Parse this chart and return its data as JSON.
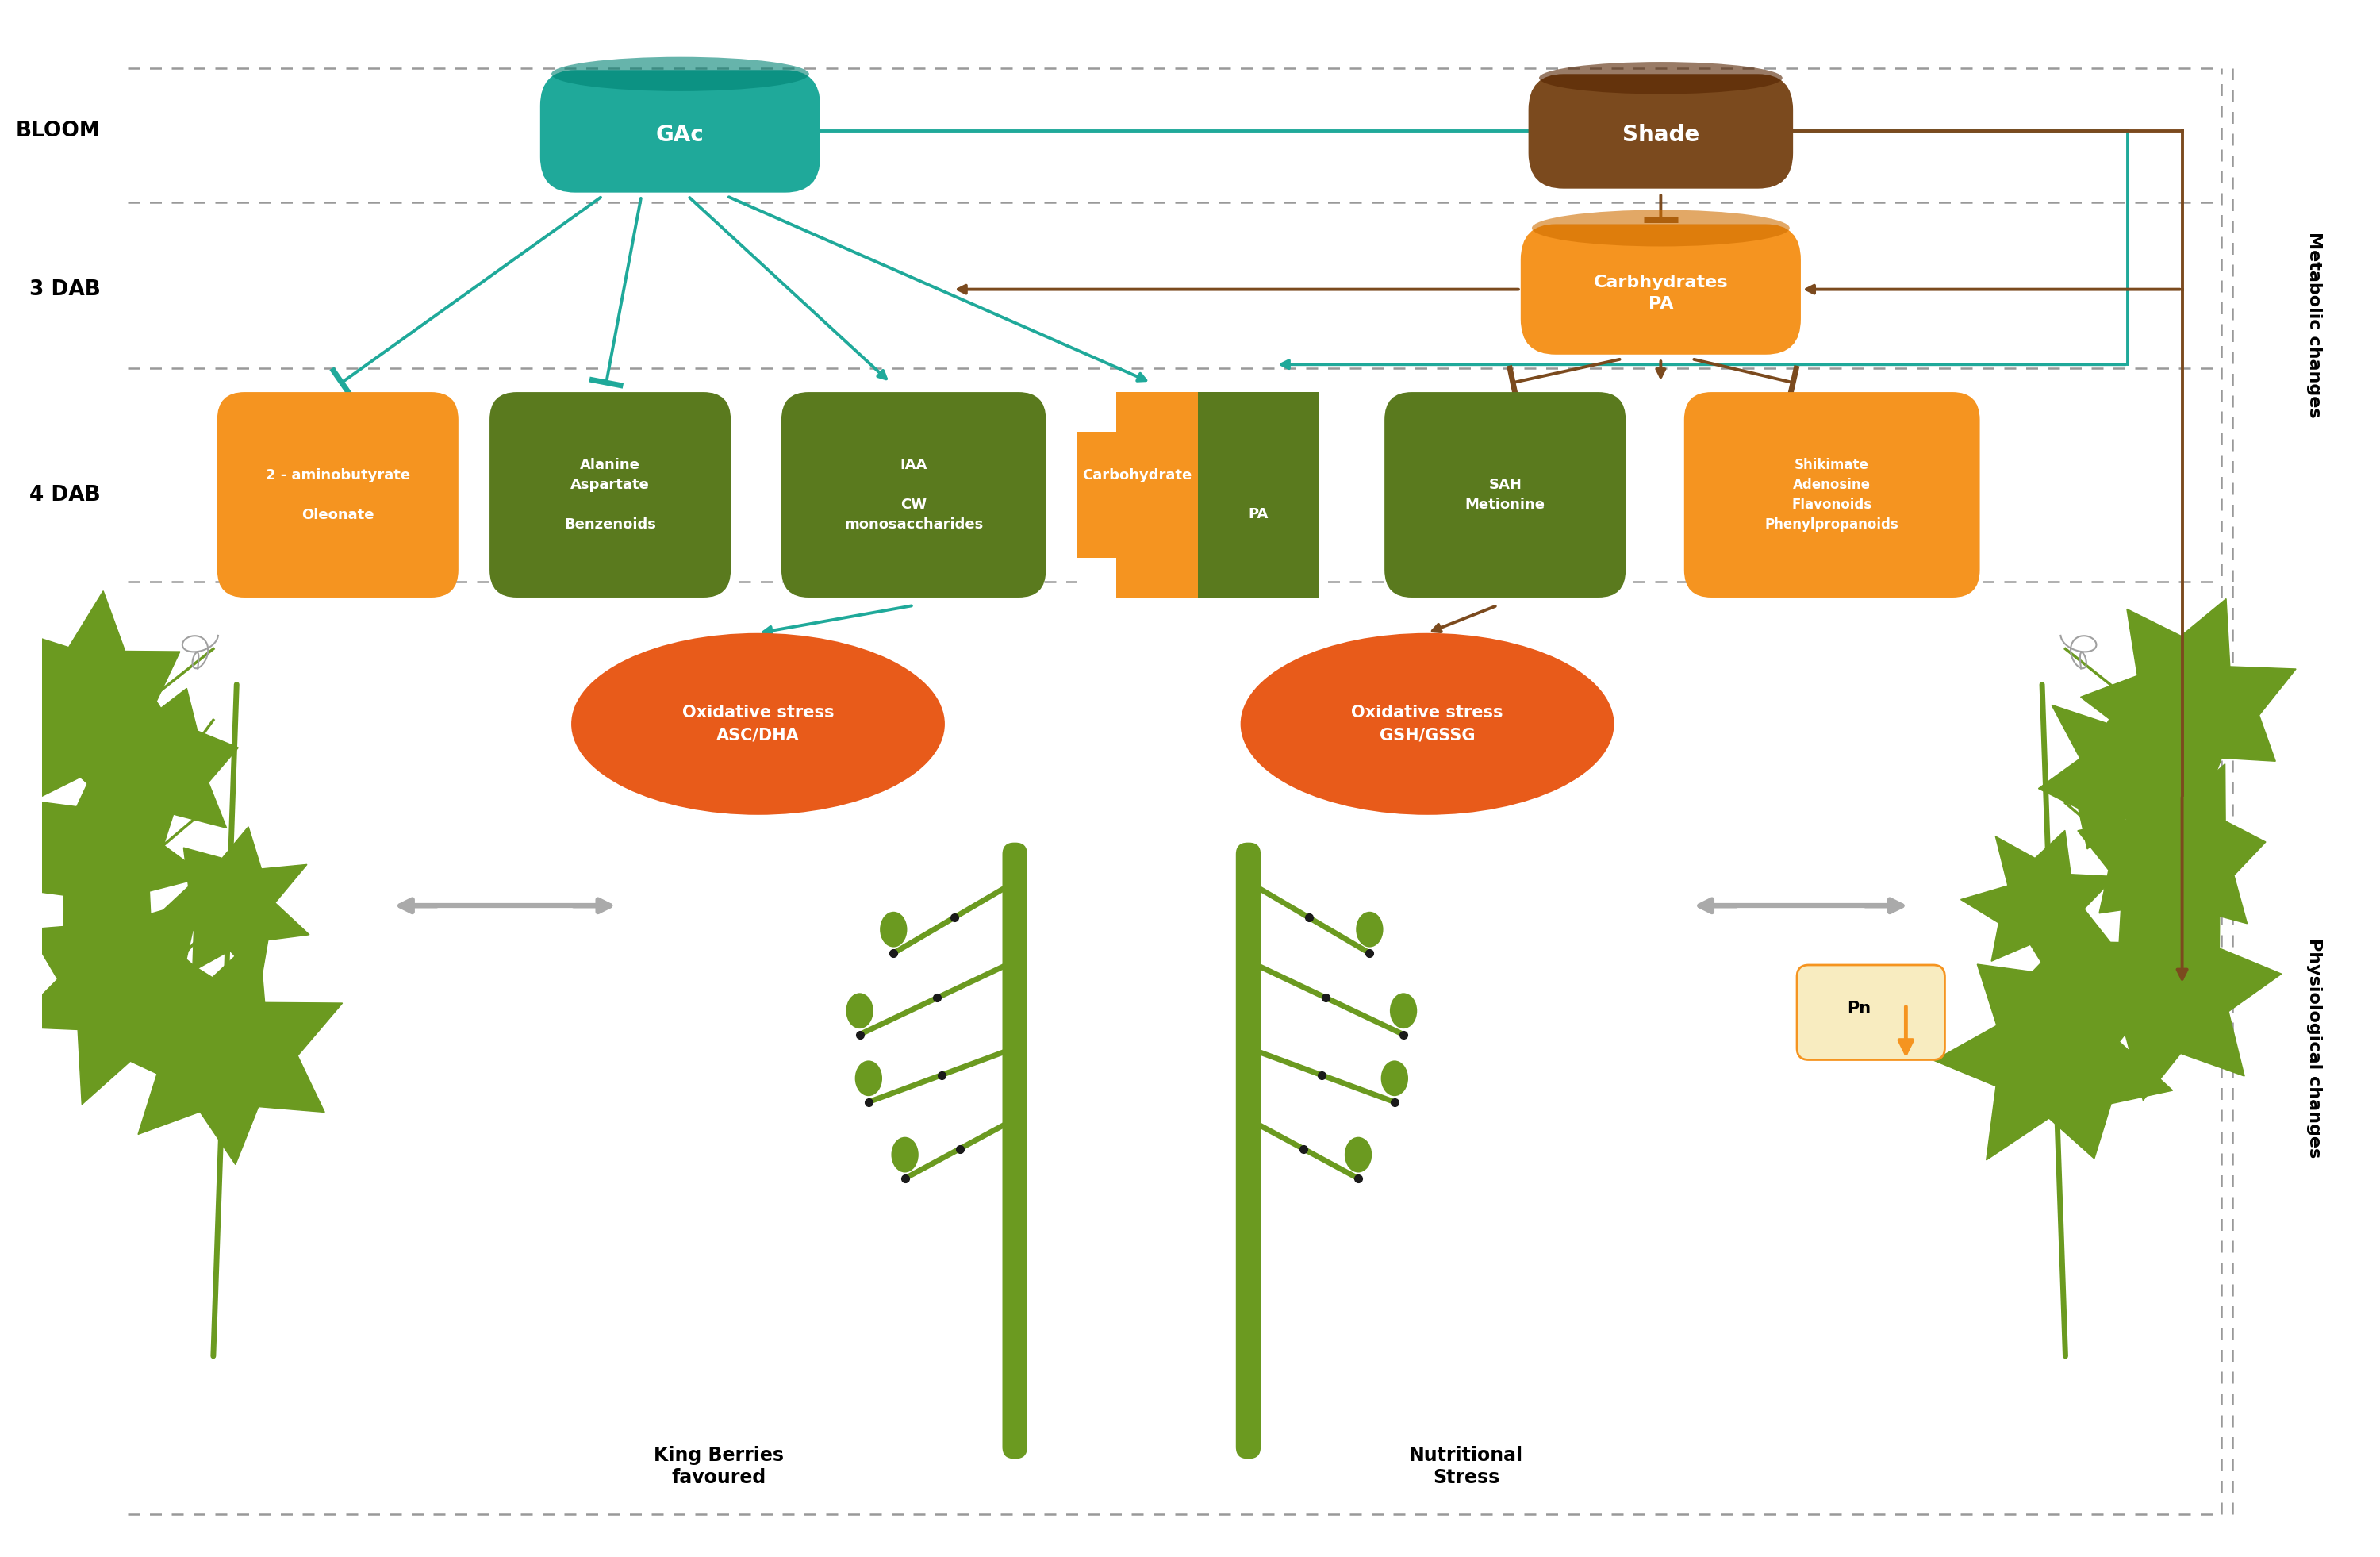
{
  "bg_color": "#ffffff",
  "teal": "#1fa99a",
  "brown": "#7B4A1E",
  "orange": "#F59420",
  "dark_green": "#5A7A1E",
  "red_orange": "#E85B1A",
  "gray_arrow": "#AAAAAA",
  "vine_green": "#6B9A20",
  "vine_green2": "#5A8A18",
  "bloom_label": "BLOOM",
  "dab3_label": "3 DAB",
  "dab4_label": "4 DAB",
  "gac_text": "GAc",
  "shade_text": "Shade",
  "carb_pa_text": "Carbhydrates\nPA",
  "box1_text": "2 - aminobutyrate\n\nOleonate",
  "box2_text": "Alanine\nAspartate\n\nBenzenoids",
  "box3_text": "IAA\n\nCW\nmonosaccharides",
  "box4a_text": "Carbohydrate",
  "box4b_text": "PA",
  "box5_text": "SAH\nMetionine",
  "box6_text": "Shikimate\nAdenosine\nFlavonoids\nPhenylpropanoids",
  "ox1_text": "Oxidative stress\nASC/DHA",
  "ox2_text": "Oxidative stress\nGSH/GSSG",
  "king_text": "King Berries\nfavoured",
  "nutr_text": "Nutritional\nStress",
  "meta_text": "Metabolic changes",
  "physio_text": "Physiological changes",
  "pn_text": "Pn"
}
